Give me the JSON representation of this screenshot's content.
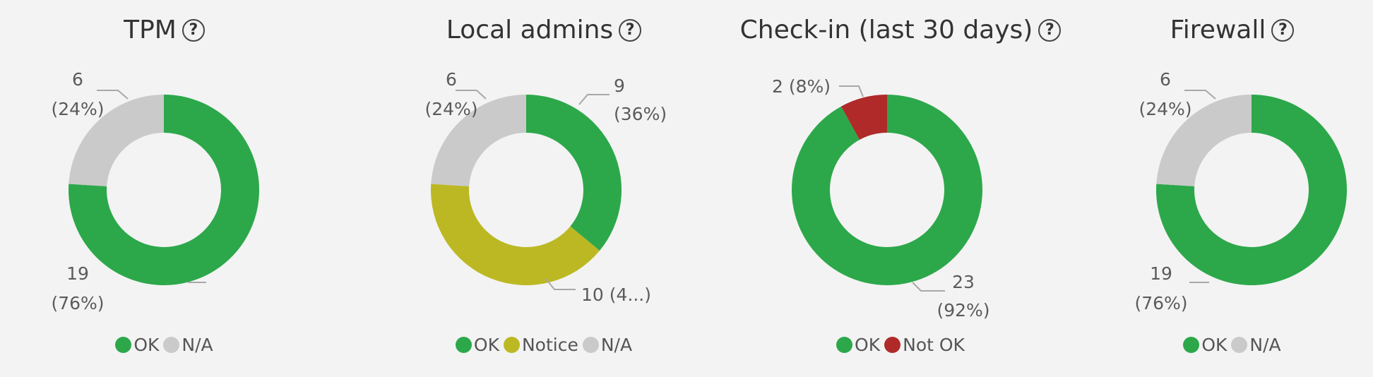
{
  "chart_data": [
    {
      "type": "pie",
      "title": "TPM",
      "help_icon": "question-circle-icon",
      "slices": [
        {
          "label": "OK",
          "value": 19,
          "display": "19 (76%)",
          "color": "#2ca84a"
        },
        {
          "label": "N/A",
          "value": 6,
          "display": "6 (24%)",
          "color": "#cacaca"
        }
      ],
      "legend": [
        {
          "label": "OK",
          "color": "#2ca84a"
        },
        {
          "label": "N/A",
          "color": "#cacaca"
        }
      ]
    },
    {
      "type": "pie",
      "title": "Local admins",
      "help_icon": "question-circle-icon",
      "slices": [
        {
          "label": "OK",
          "value": 9,
          "display": "9 (36%)",
          "color": "#2ca84a"
        },
        {
          "label": "Notice",
          "value": 10,
          "display": "10 (4...)",
          "color": "#bcb823"
        },
        {
          "label": "N/A",
          "value": 6,
          "display": "6 (24%)",
          "color": "#cacaca"
        }
      ],
      "legend": [
        {
          "label": "OK",
          "color": "#2ca84a"
        },
        {
          "label": "Notice",
          "color": "#bcb823"
        },
        {
          "label": "N/A",
          "color": "#cacaca"
        }
      ]
    },
    {
      "type": "pie",
      "title": "Check-in (last 30 days)",
      "help_icon": "question-circle-icon",
      "slices": [
        {
          "label": "OK",
          "value": 23,
          "display": "23 (92%)",
          "color": "#2ca84a"
        },
        {
          "label": "Not OK",
          "value": 2,
          "display": "2 (8%)",
          "color": "#b02a2a"
        }
      ],
      "legend": [
        {
          "label": "OK",
          "color": "#2ca84a"
        },
        {
          "label": "Not OK",
          "color": "#b02a2a"
        }
      ]
    },
    {
      "type": "pie",
      "title": "Firewall",
      "help_icon": "question-circle-icon",
      "slices": [
        {
          "label": "OK",
          "value": 19,
          "display": "19 (76%)",
          "color": "#2ca84a"
        },
        {
          "label": "N/A",
          "value": 6,
          "display": "6 (24%)",
          "color": "#cacaca"
        }
      ],
      "legend": [
        {
          "label": "OK",
          "color": "#2ca84a"
        },
        {
          "label": "N/A",
          "color": "#cacaca"
        }
      ]
    }
  ]
}
